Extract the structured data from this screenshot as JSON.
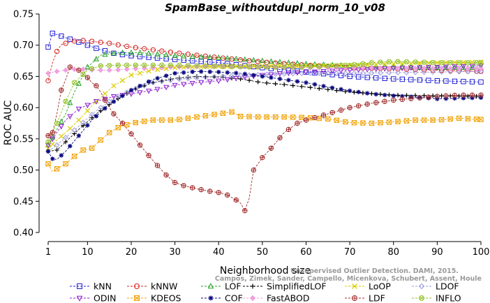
{
  "chart_data": {
    "type": "line",
    "title": "SpamBase_withoutdupl_norm_10_v08",
    "xlabel": "Neighborhood size",
    "ylabel": "ROC AUC",
    "xlim": [
      1,
      100
    ],
    "ylim": [
      0.4,
      0.75
    ],
    "x_ticks": [
      "1",
      "10",
      "20",
      "30",
      "40",
      "50",
      "60",
      "70",
      "80",
      "90",
      "100"
    ],
    "y_ticks": [
      "0.40",
      "0.45",
      "0.50",
      "0.55",
      "0.60",
      "0.65",
      "0.70",
      "0.75"
    ],
    "grid": false,
    "legend_position": "bottom",
    "watermark": [
      "Unsupervised Outlier Detection. DAMI, 2015.",
      "Campos, Zimek, Sander, Campello, Micenkova, Schubert, Assent, Houle"
    ],
    "series": [
      {
        "name": "kNN",
        "color": "#1f1fd6",
        "marker": "square",
        "points": [
          [
            1,
            0.697
          ],
          [
            2,
            0.719
          ],
          [
            3,
            0.717
          ],
          [
            5,
            0.712
          ],
          [
            8,
            0.705
          ],
          [
            12,
            0.695
          ],
          [
            16,
            0.687
          ],
          [
            20,
            0.683
          ],
          [
            30,
            0.677
          ],
          [
            40,
            0.672
          ],
          [
            50,
            0.664
          ],
          [
            60,
            0.657
          ],
          [
            70,
            0.65
          ],
          [
            80,
            0.646
          ],
          [
            90,
            0.643
          ],
          [
            100,
            0.641
          ]
        ]
      },
      {
        "name": "kNNW",
        "color": "#d42020",
        "marker": "circle",
        "points": [
          [
            1,
            0.643
          ],
          [
            2,
            0.672
          ],
          [
            3,
            0.69
          ],
          [
            4,
            0.701
          ],
          [
            6,
            0.705
          ],
          [
            8,
            0.708
          ],
          [
            10,
            0.707
          ],
          [
            15,
            0.703
          ],
          [
            20,
            0.697
          ],
          [
            30,
            0.688
          ],
          [
            40,
            0.68
          ],
          [
            50,
            0.673
          ],
          [
            60,
            0.668
          ],
          [
            70,
            0.664
          ],
          [
            80,
            0.662
          ],
          [
            90,
            0.66
          ],
          [
            100,
            0.658
          ]
        ]
      },
      {
        "name": "LOF",
        "color": "#1fa01f",
        "marker": "triangle-up",
        "points": [
          [
            1,
            0.54
          ],
          [
            3,
            0.565
          ],
          [
            5,
            0.59
          ],
          [
            7,
            0.625
          ],
          [
            10,
            0.665
          ],
          [
            13,
            0.684
          ],
          [
            17,
            0.688
          ],
          [
            22,
            0.688
          ],
          [
            30,
            0.683
          ],
          [
            40,
            0.68
          ],
          [
            50,
            0.675
          ],
          [
            60,
            0.67
          ],
          [
            70,
            0.667
          ],
          [
            80,
            0.665
          ],
          [
            90,
            0.664
          ],
          [
            100,
            0.664
          ]
        ]
      },
      {
        "name": "SimplifiedLOF",
        "color": "#000000",
        "marker": "plus",
        "points": [
          [
            1,
            0.53
          ],
          [
            3,
            0.532
          ],
          [
            5,
            0.545
          ],
          [
            8,
            0.565
          ],
          [
            12,
            0.59
          ],
          [
            16,
            0.61
          ],
          [
            20,
            0.627
          ],
          [
            25,
            0.64
          ],
          [
            30,
            0.647
          ],
          [
            35,
            0.65
          ],
          [
            40,
            0.649
          ],
          [
            45,
            0.646
          ],
          [
            50,
            0.64
          ],
          [
            55,
            0.637
          ],
          [
            60,
            0.633
          ],
          [
            70,
            0.625
          ],
          [
            80,
            0.62
          ],
          [
            90,
            0.619
          ],
          [
            100,
            0.618
          ]
        ]
      },
      {
        "name": "LoOP",
        "color": "#d9cc00",
        "marker": "x",
        "points": [
          [
            1,
            0.535
          ],
          [
            3,
            0.548
          ],
          [
            5,
            0.56
          ],
          [
            8,
            0.58
          ],
          [
            12,
            0.61
          ],
          [
            16,
            0.635
          ],
          [
            20,
            0.652
          ],
          [
            25,
            0.66
          ],
          [
            30,
            0.664
          ],
          [
            40,
            0.666
          ],
          [
            50,
            0.667
          ],
          [
            60,
            0.667
          ],
          [
            70,
            0.668
          ],
          [
            80,
            0.67
          ],
          [
            90,
            0.672
          ],
          [
            100,
            0.673
          ]
        ]
      },
      {
        "name": "LDOF",
        "color": "#9b9bdc",
        "marker": "diamond",
        "points": [
          [
            1,
            0.53
          ],
          [
            3,
            0.54
          ],
          [
            5,
            0.552
          ],
          [
            8,
            0.57
          ],
          [
            12,
            0.595
          ],
          [
            16,
            0.615
          ],
          [
            20,
            0.628
          ],
          [
            25,
            0.64
          ],
          [
            30,
            0.645
          ],
          [
            40,
            0.65
          ],
          [
            50,
            0.653
          ],
          [
            60,
            0.655
          ],
          [
            70,
            0.655
          ],
          [
            80,
            0.656
          ],
          [
            90,
            0.657
          ],
          [
            100,
            0.658
          ]
        ]
      },
      {
        "name": "ODIN",
        "color": "#8a1ecf",
        "marker": "triangle-down",
        "points": [
          [
            1,
            0.54
          ],
          [
            3,
            0.56
          ],
          [
            5,
            0.58
          ],
          [
            8,
            0.598
          ],
          [
            12,
            0.61
          ],
          [
            16,
            0.618
          ],
          [
            20,
            0.622
          ],
          [
            25,
            0.628
          ],
          [
            30,
            0.636
          ],
          [
            35,
            0.64
          ],
          [
            40,
            0.643
          ],
          [
            45,
            0.648
          ],
          [
            50,
            0.652
          ],
          [
            55,
            0.655
          ],
          [
            60,
            0.657
          ],
          [
            70,
            0.66
          ],
          [
            80,
            0.663
          ],
          [
            90,
            0.665
          ],
          [
            100,
            0.667
          ]
        ]
      },
      {
        "name": "KDEOS",
        "color": "#f0a000",
        "marker": "square-x",
        "points": [
          [
            1,
            0.51
          ],
          [
            2,
            0.497
          ],
          [
            3,
            0.502
          ],
          [
            5,
            0.51
          ],
          [
            7,
            0.522
          ],
          [
            9,
            0.532
          ],
          [
            11,
            0.535
          ],
          [
            13,
            0.548
          ],
          [
            15,
            0.56
          ],
          [
            17,
            0.568
          ],
          [
            20,
            0.575
          ],
          [
            25,
            0.58
          ],
          [
            30,
            0.58
          ],
          [
            35,
            0.585
          ],
          [
            40,
            0.59
          ],
          [
            43,
            0.593
          ],
          [
            45,
            0.586
          ],
          [
            50,
            0.585
          ],
          [
            55,
            0.585
          ],
          [
            60,
            0.584
          ],
          [
            65,
            0.582
          ],
          [
            70,
            0.576
          ],
          [
            75,
            0.575
          ],
          [
            80,
            0.577
          ],
          [
            85,
            0.58
          ],
          [
            90,
            0.58
          ],
          [
            95,
            0.583
          ],
          [
            100,
            0.581
          ]
        ]
      },
      {
        "name": "COF",
        "color": "#0a0a80",
        "marker": "asterisk",
        "points": [
          [
            1,
            0.53
          ],
          [
            2,
            0.518
          ],
          [
            3,
            0.517
          ],
          [
            5,
            0.53
          ],
          [
            8,
            0.555
          ],
          [
            11,
            0.58
          ],
          [
            15,
            0.605
          ],
          [
            20,
            0.628
          ],
          [
            25,
            0.645
          ],
          [
            30,
            0.655
          ],
          [
            35,
            0.658
          ],
          [
            40,
            0.657
          ],
          [
            45,
            0.655
          ],
          [
            50,
            0.65
          ],
          [
            55,
            0.645
          ],
          [
            60,
            0.64
          ],
          [
            65,
            0.633
          ],
          [
            70,
            0.627
          ],
          [
            75,
            0.622
          ],
          [
            80,
            0.619
          ],
          [
            85,
            0.617
          ],
          [
            90,
            0.614
          ],
          [
            95,
            0.615
          ],
          [
            100,
            0.616
          ]
        ]
      },
      {
        "name": "FastABOD",
        "color": "#f0a0e0",
        "marker": "diamond-filled",
        "points": [
          [
            1,
            0.655
          ],
          [
            3,
            0.658
          ],
          [
            5,
            0.66
          ],
          [
            8,
            0.662
          ],
          [
            12,
            0.66
          ],
          [
            16,
            0.66
          ],
          [
            20,
            0.662
          ],
          [
            30,
            0.665
          ],
          [
            40,
            0.666
          ],
          [
            50,
            0.665
          ],
          [
            60,
            0.664
          ],
          [
            70,
            0.664
          ],
          [
            80,
            0.663
          ],
          [
            90,
            0.663
          ],
          [
            100,
            0.662
          ]
        ]
      },
      {
        "name": "LDF",
        "color": "#a02828",
        "marker": "circle-plus",
        "points": [
          [
            1,
            0.555
          ],
          [
            2,
            0.56
          ],
          [
            3,
            0.59
          ],
          [
            4,
            0.628
          ],
          [
            5,
            0.645
          ],
          [
            6,
            0.665
          ],
          [
            8,
            0.66
          ],
          [
            10,
            0.648
          ],
          [
            11,
            0.64
          ],
          [
            12,
            0.635
          ],
          [
            13,
            0.625
          ],
          [
            14,
            0.612
          ],
          [
            15,
            0.6
          ],
          [
            16,
            0.59
          ],
          [
            18,
            0.575
          ],
          [
            20,
            0.558
          ],
          [
            22,
            0.54
          ],
          [
            25,
            0.515
          ],
          [
            28,
            0.492
          ],
          [
            30,
            0.48
          ],
          [
            32,
            0.475
          ],
          [
            35,
            0.47
          ],
          [
            38,
            0.466
          ],
          [
            40,
            0.464
          ],
          [
            42,
            0.46
          ],
          [
            44,
            0.452
          ],
          [
            45,
            0.447
          ],
          [
            46,
            0.435
          ],
          [
            47,
            0.455
          ],
          [
            48,
            0.5
          ],
          [
            50,
            0.52
          ],
          [
            52,
            0.535
          ],
          [
            55,
            0.56
          ],
          [
            58,
            0.575
          ],
          [
            60,
            0.58
          ],
          [
            65,
            0.59
          ],
          [
            70,
            0.6
          ],
          [
            75,
            0.607
          ],
          [
            80,
            0.612
          ],
          [
            85,
            0.615
          ],
          [
            90,
            0.618
          ],
          [
            95,
            0.62
          ],
          [
            100,
            0.62
          ]
        ]
      },
      {
        "name": "INFLO",
        "color": "#90c020",
        "marker": "circle-x",
        "points": [
          [
            1,
            0.545
          ],
          [
            3,
            0.575
          ],
          [
            5,
            0.61
          ],
          [
            7,
            0.64
          ],
          [
            10,
            0.66
          ],
          [
            13,
            0.667
          ],
          [
            17,
            0.668
          ],
          [
            22,
            0.668
          ],
          [
            30,
            0.668
          ],
          [
            40,
            0.666
          ],
          [
            50,
            0.665
          ],
          [
            60,
            0.665
          ],
          [
            70,
            0.668
          ],
          [
            75,
            0.672
          ],
          [
            80,
            0.674
          ],
          [
            85,
            0.673
          ],
          [
            90,
            0.672
          ],
          [
            95,
            0.672
          ],
          [
            100,
            0.672
          ]
        ]
      }
    ]
  }
}
